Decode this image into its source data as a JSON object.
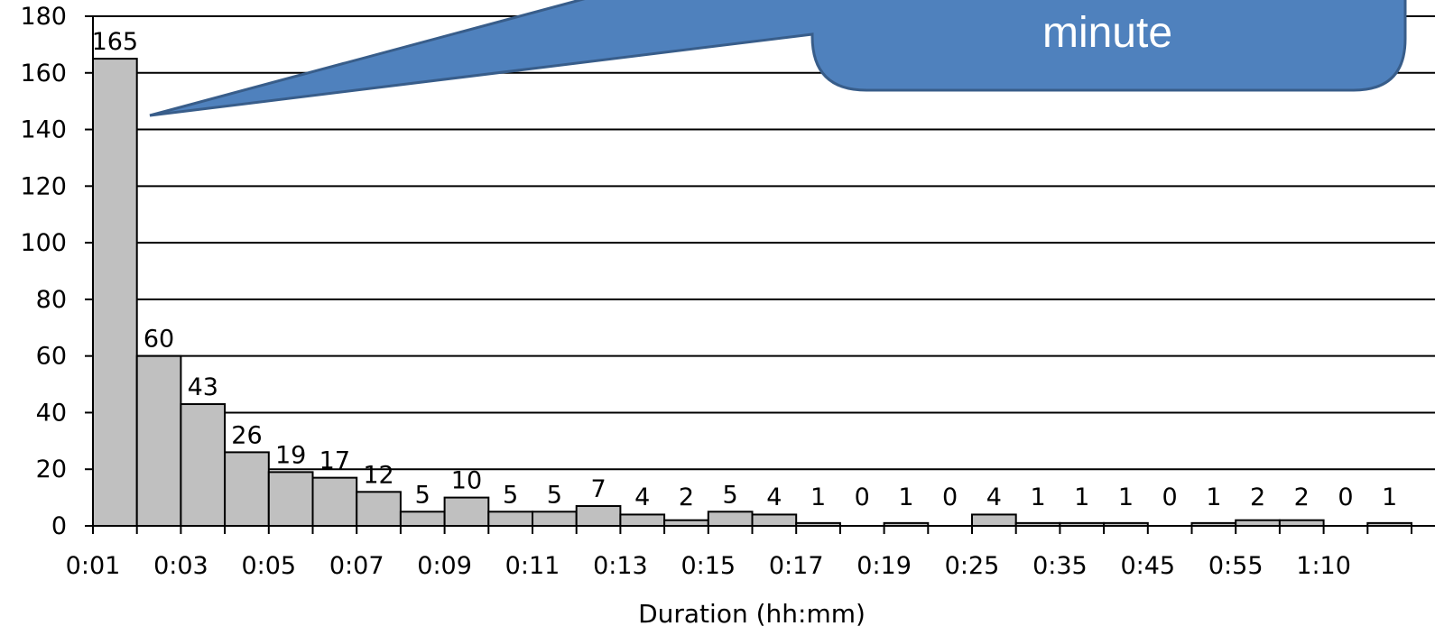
{
  "callout": {
    "text": "minute",
    "fill": "#4f81bd",
    "stroke": "#385d8a"
  },
  "chart_data": {
    "type": "bar",
    "xlabel": "Duration (hh:mm)",
    "ylabel": "",
    "ylim": [
      0,
      180
    ],
    "yticks": [
      0,
      20,
      40,
      60,
      80,
      100,
      120,
      140,
      160,
      180
    ],
    "grid": true,
    "bar_color": "#c0c0c0",
    "x_tick_labels": [
      "0:01",
      "0:03",
      "0:05",
      "0:07",
      "0:09",
      "0:11",
      "0:13",
      "0:15",
      "0:17",
      "0:19",
      "0:25",
      "0:35",
      "0:45",
      "0:55",
      "1:10"
    ],
    "series": [
      {
        "values": [
          165,
          60,
          43,
          26,
          19,
          17,
          12,
          5,
          10,
          5,
          5,
          7,
          4,
          2,
          5,
          4,
          1,
          0,
          1,
          0,
          4,
          1,
          1,
          1,
          0,
          1,
          2,
          2,
          0,
          1
        ]
      }
    ]
  }
}
